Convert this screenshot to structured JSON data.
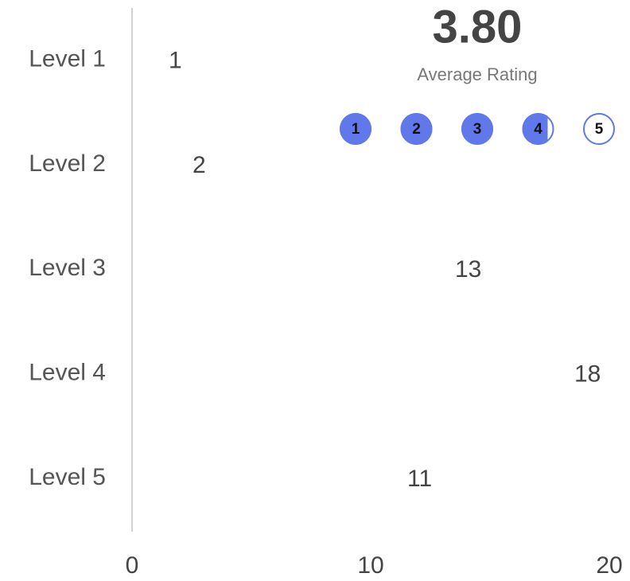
{
  "chart_data": {
    "type": "bar",
    "orientation": "horizontal",
    "categories": [
      "Level 1",
      "Level 2",
      "Level 3",
      "Level 4",
      "Level 5"
    ],
    "values": [
      1,
      2,
      13,
      18,
      11
    ],
    "color": "#fee08f",
    "xlim": [
      0,
      20
    ],
    "xticks": [
      0,
      10,
      20
    ],
    "grid": false
  },
  "rating": {
    "average": {
      "value": 3.8,
      "label": "3.80"
    },
    "caption": "Average Rating",
    "scale": [
      1,
      2,
      3,
      4,
      5
    ],
    "color": "#6078ea"
  }
}
